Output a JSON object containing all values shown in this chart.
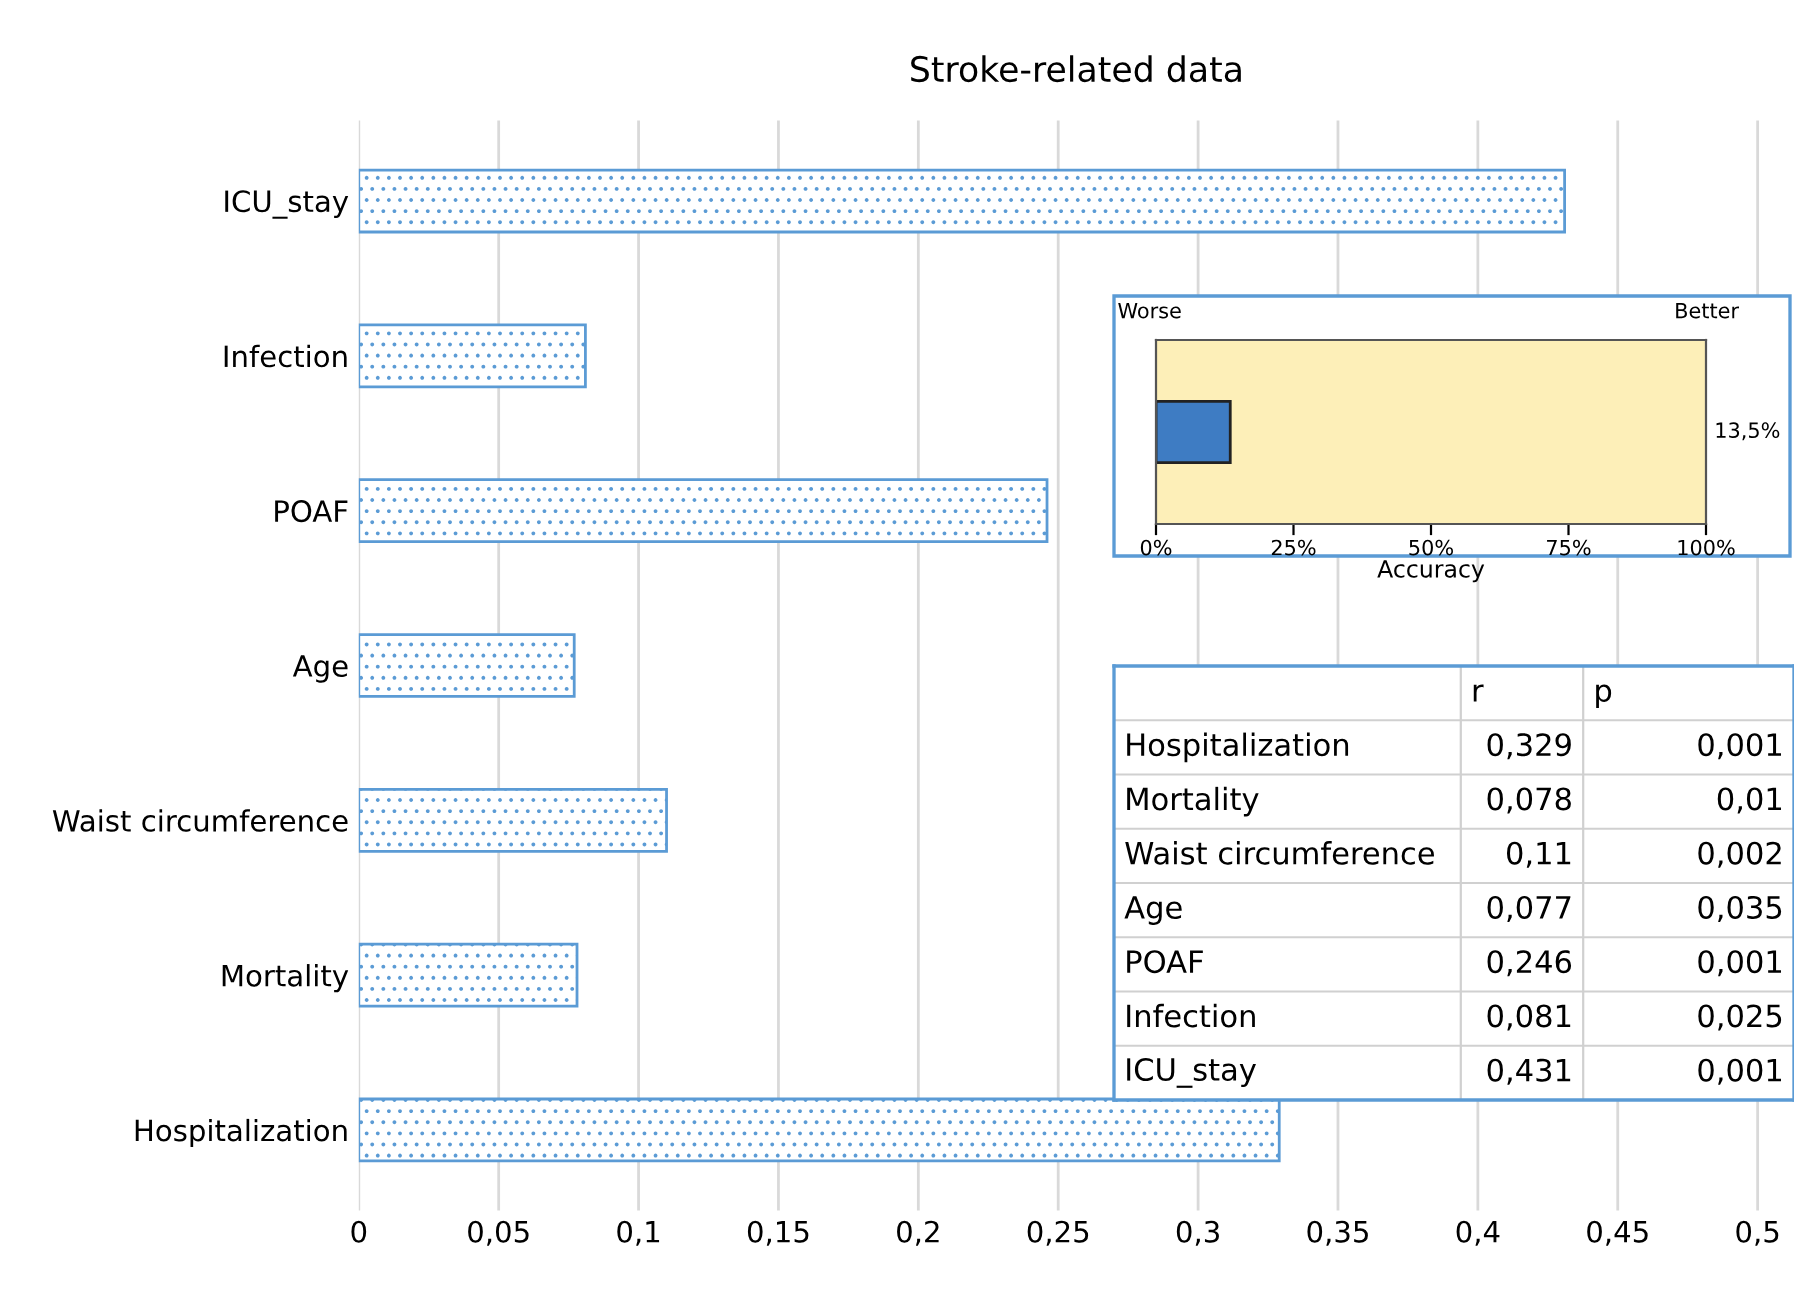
{
  "chart_data": [
    {
      "type": "bar",
      "orientation": "horizontal",
      "title": "Stroke-related data",
      "categories": [
        "ICU_stay",
        "Infection",
        "POAF",
        "Age",
        "Waist circumference",
        "Mortality",
        "Hospitalization"
      ],
      "values": [
        0.431,
        0.081,
        0.246,
        0.077,
        0.11,
        0.078,
        0.329
      ],
      "color": "#5b9bd5",
      "xlim": [
        0,
        0.513
      ],
      "xticks": [
        {
          "value": 0,
          "label": "0"
        },
        {
          "value": 0.05,
          "label": "0,05"
        },
        {
          "value": 0.1,
          "label": "0,1"
        },
        {
          "value": 0.15,
          "label": "0,15"
        },
        {
          "value": 0.2,
          "label": "0,2"
        },
        {
          "value": 0.25,
          "label": "0,25"
        },
        {
          "value": 0.3,
          "label": "0,3"
        },
        {
          "value": 0.35,
          "label": "0,35"
        },
        {
          "value": 0.4,
          "label": "0,4"
        },
        {
          "value": 0.45,
          "label": "0,45"
        },
        {
          "value": 0.5,
          "label": "0,5"
        }
      ],
      "grid": "x",
      "annotations": [
        "r",
        "p",
        "0,329",
        "0,001",
        "0,078",
        "0,01",
        "0,11",
        "0,002",
        "0,077",
        "0,035",
        "0,246",
        "0,001",
        "0,081",
        "0,025",
        "0,431",
        "0,001"
      ]
    },
    {
      "type": "bar",
      "orientation": "horizontal",
      "categories": [
        null
      ],
      "values": [
        13.5
      ],
      "color": "#3e7cc3",
      "xlabel": "Accuracy",
      "xlim": [
        0,
        100
      ],
      "xticks": [
        {
          "value": 0,
          "label": "0%"
        },
        {
          "value": 25,
          "label": "25%"
        },
        {
          "value": 50,
          "label": "50%"
        },
        {
          "value": 75,
          "label": "75%"
        },
        {
          "value": 100,
          "label": "100%"
        }
      ],
      "bands": [
        {
          "axis": "x",
          "from": 0,
          "to": 100,
          "color": "#fdefb8"
        }
      ],
      "annotations": [
        "Worse",
        "Better",
        "13,5%"
      ]
    }
  ]
}
